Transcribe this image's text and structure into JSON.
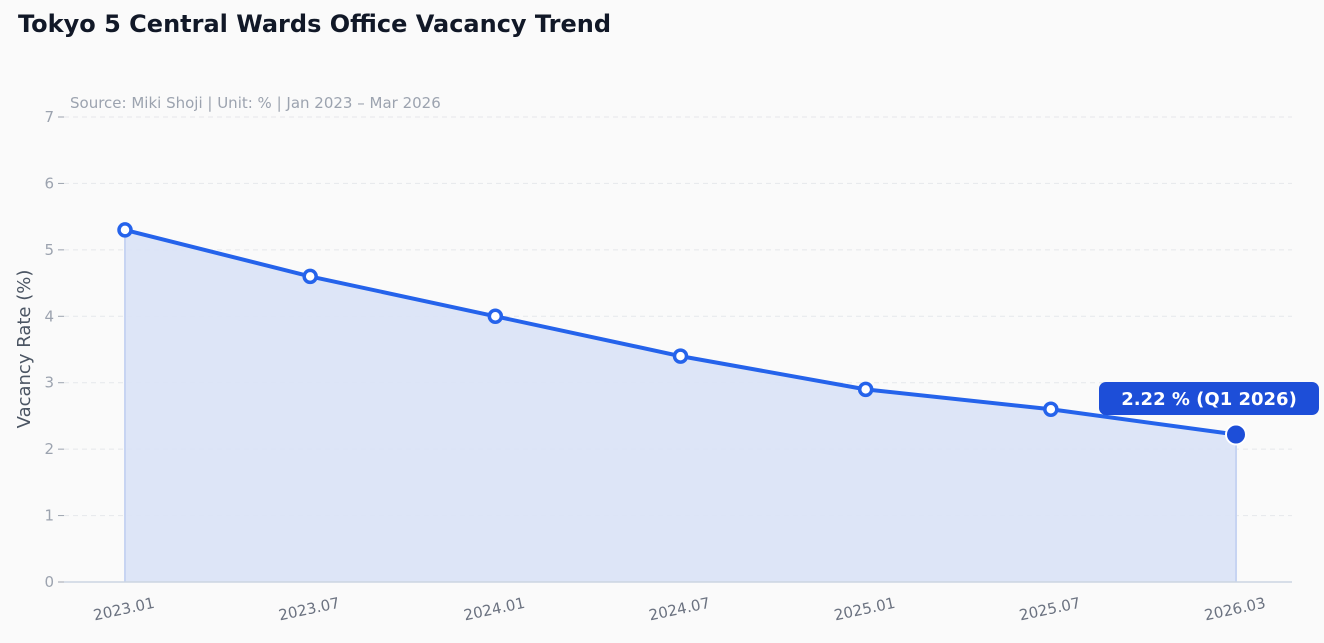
{
  "chart": {
    "title": "Tokyo 5 Central Wards Office Vacancy Trend",
    "subtitle": "Source: Miki Shoji  |  Unit: %  |  Jan 2023 – Mar 2026",
    "ylabel": "Vacancy Rate (%)"
  },
  "chart_data": {
    "type": "line",
    "title": "Tokyo 5 Central Wards Office Vacancy Trend",
    "subtitle": "Source: Miki Shoji  |  Unit: %  |  Jan 2023 – Mar 2026",
    "xlabel": "",
    "ylabel": "Vacancy Rate (%)",
    "categories": [
      "2023.01",
      "2023.07",
      "2024.01",
      "2024.07",
      "2025.01",
      "2025.07",
      "2026.03"
    ],
    "series": [
      {
        "values": [
          5.3,
          4.6,
          4.0,
          3.4,
          2.9,
          2.6,
          2.22
        ]
      }
    ],
    "ylim": [
      0,
      7
    ],
    "yticks": [
      0,
      1,
      2,
      3,
      4,
      5,
      6,
      7
    ],
    "grid": true,
    "area_fill": true,
    "callout": {
      "label": "2.22 % (Q1 2026)",
      "index": 6
    },
    "colors": {
      "line": "#2563eb",
      "fill": "#dbe4f7",
      "callout_bg": "#1d4ed8",
      "grid": "#e5e7eb",
      "axis": "#cbd5e1"
    }
  }
}
